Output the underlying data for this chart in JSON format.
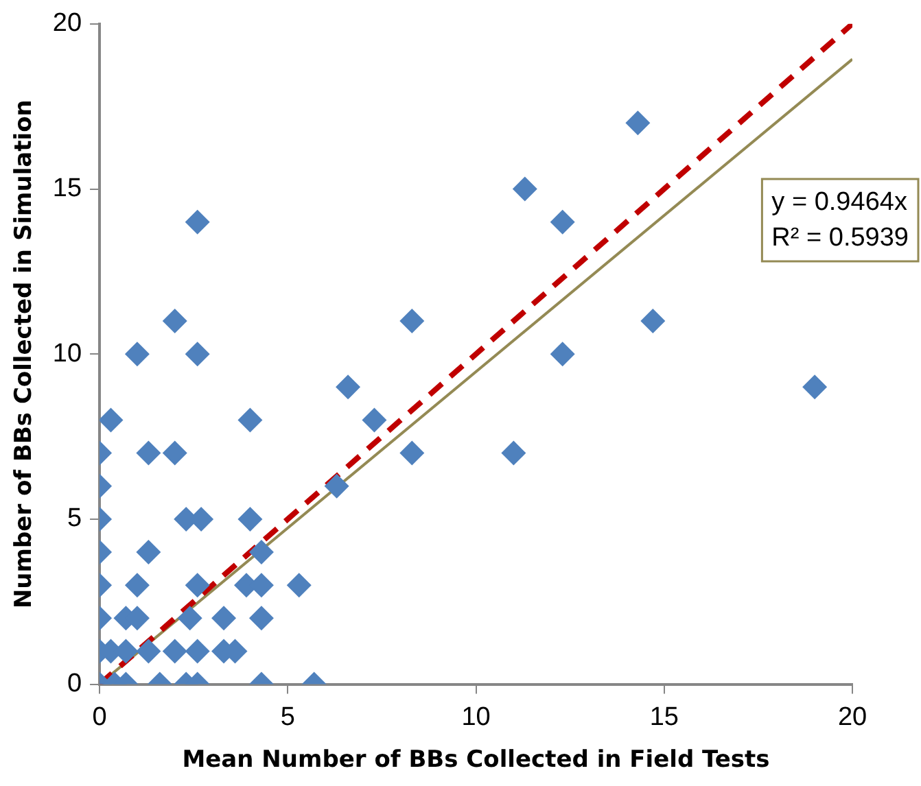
{
  "chart_data": {
    "type": "scatter",
    "xlabel": "Mean Number of BBs Collected in Field Tests",
    "ylabel": "Number of BBs Collected in Simulation",
    "xlim": [
      0,
      20
    ],
    "xticks": [
      0,
      5,
      10,
      15,
      20
    ],
    "ylim": [
      0,
      20
    ],
    "yticks": [
      0,
      5,
      10,
      15,
      20
    ],
    "grid": false,
    "legend": false,
    "marker": "diamond",
    "annotations": [
      "y = 0.9464x",
      "R² = 0.5939"
    ],
    "series": [
      {
        "color": "#4f81bd",
        "x": [
          0,
          0.4,
          0.7,
          1.6,
          2.3,
          2.6,
          4.3,
          5.7,
          0,
          0.3,
          0.7,
          1.3,
          2,
          2.6,
          3.3,
          3.6,
          0,
          0.7,
          1,
          2.4,
          3.3,
          4.3,
          0,
          1,
          2.6,
          3.9,
          4.3,
          5.3,
          0,
          1.3,
          4.3,
          0,
          2.3,
          2.7,
          4,
          0,
          6.3,
          0,
          1.3,
          2,
          8.3,
          11,
          0.3,
          4,
          7.3,
          6.6,
          19,
          1,
          2.6,
          12.3,
          2,
          8.3,
          14.7,
          2.6,
          12.3,
          11.3,
          14.3
        ],
        "values": [
          0,
          0,
          0,
          0,
          0,
          0,
          0,
          0,
          1,
          1,
          1,
          1,
          1,
          1,
          1,
          1,
          2,
          2,
          2,
          2,
          2,
          2,
          3,
          3,
          3,
          3,
          3,
          3,
          4,
          4,
          4,
          5,
          5,
          5,
          5,
          6,
          6,
          7,
          7,
          7,
          7,
          7,
          8,
          8,
          8,
          9,
          9,
          10,
          10,
          10,
          11,
          11,
          11,
          14,
          14,
          15,
          17
        ]
      },
      {
        "type": "line",
        "color": "#c00000",
        "line_style": "dashed",
        "marker": "none",
        "x": [
          0,
          20
        ],
        "values": [
          0,
          20
        ]
      },
      {
        "type": "line",
        "color": "#948a54",
        "line_style": "solid",
        "marker": "none",
        "x": [
          0,
          20
        ],
        "values": [
          0,
          18.93
        ]
      }
    ]
  }
}
